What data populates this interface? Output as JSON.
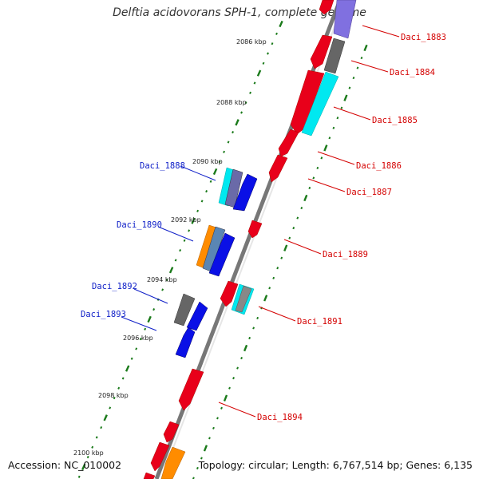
{
  "title": "Delftia acidovorans SPH-1, complete genome",
  "accession": "Accession: NC_010002",
  "topology": "Topology: circular; Length: 6,767,514 bp; Genes: 6,135",
  "ticks": [
    "2086 kbp",
    "2088 kbp",
    "2090 kbp",
    "2092 kbp",
    "2094 kbp",
    "2096 kbp",
    "2098 kbp",
    "2100 kbp"
  ],
  "labels_forward": [
    "Daci_1888",
    "Daci_1890",
    "Daci_1892",
    "Daci_1893"
  ],
  "labels_reverse": [
    "Daci_1883",
    "Daci_1884",
    "Daci_1885",
    "Daci_1886",
    "Daci_1887",
    "Daci_1889",
    "Daci_1891",
    "Daci_1894"
  ],
  "colors": {
    "reverse_strand": "#e8001a",
    "forward_strand": "#0a10e6",
    "reverse_label": "#d40000",
    "forward_label": "#1020c8",
    "cyan": "#00e8f0",
    "gray": "#666666",
    "orange": "#ff8c00",
    "steelblue": "#5a86b4",
    "lavender": "#8070e0",
    "backbone": "#8a8a8a",
    "tick_mark": "#1a7a1a"
  }
}
